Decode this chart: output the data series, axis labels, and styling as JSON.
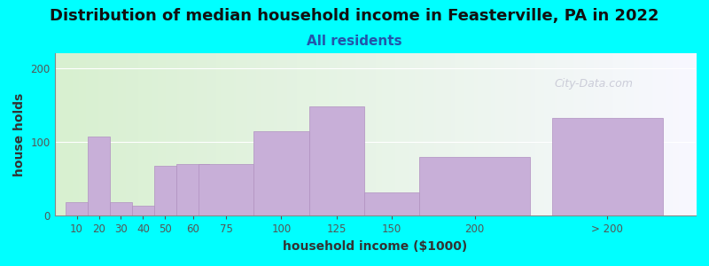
{
  "title": "Distribution of median household income in Feasterville, PA in 2022",
  "subtitle": "All residents",
  "xlabel": "household income ($1000)",
  "ylabel": "house holds",
  "background_color": "#00FFFF",
  "plot_bg_gradient_left": "#d8f0d0",
  "plot_bg_gradient_right": "#f0f0ff",
  "bar_color": "#c8afd8",
  "bar_edge_color": "#b090c0",
  "watermark": "City-Data.com",
  "categories": [
    "10",
    "20",
    "30",
    "40",
    "50",
    "60",
    "75",
    "100",
    "125",
    "150",
    "200",
    "> 200"
  ],
  "values": [
    18,
    107,
    18,
    14,
    68,
    70,
    70,
    115,
    148,
    32,
    80,
    132
  ],
  "bar_widths": [
    10,
    10,
    10,
    10,
    10,
    15,
    25,
    25,
    25,
    25,
    50,
    50
  ],
  "bar_lefts": [
    5,
    15,
    25,
    35,
    45,
    55,
    65,
    90,
    115,
    140,
    165,
    225
  ],
  "ylim": [
    0,
    220
  ],
  "yticks": [
    0,
    100,
    200
  ],
  "title_fontsize": 13,
  "subtitle_fontsize": 11,
  "axis_label_fontsize": 10
}
